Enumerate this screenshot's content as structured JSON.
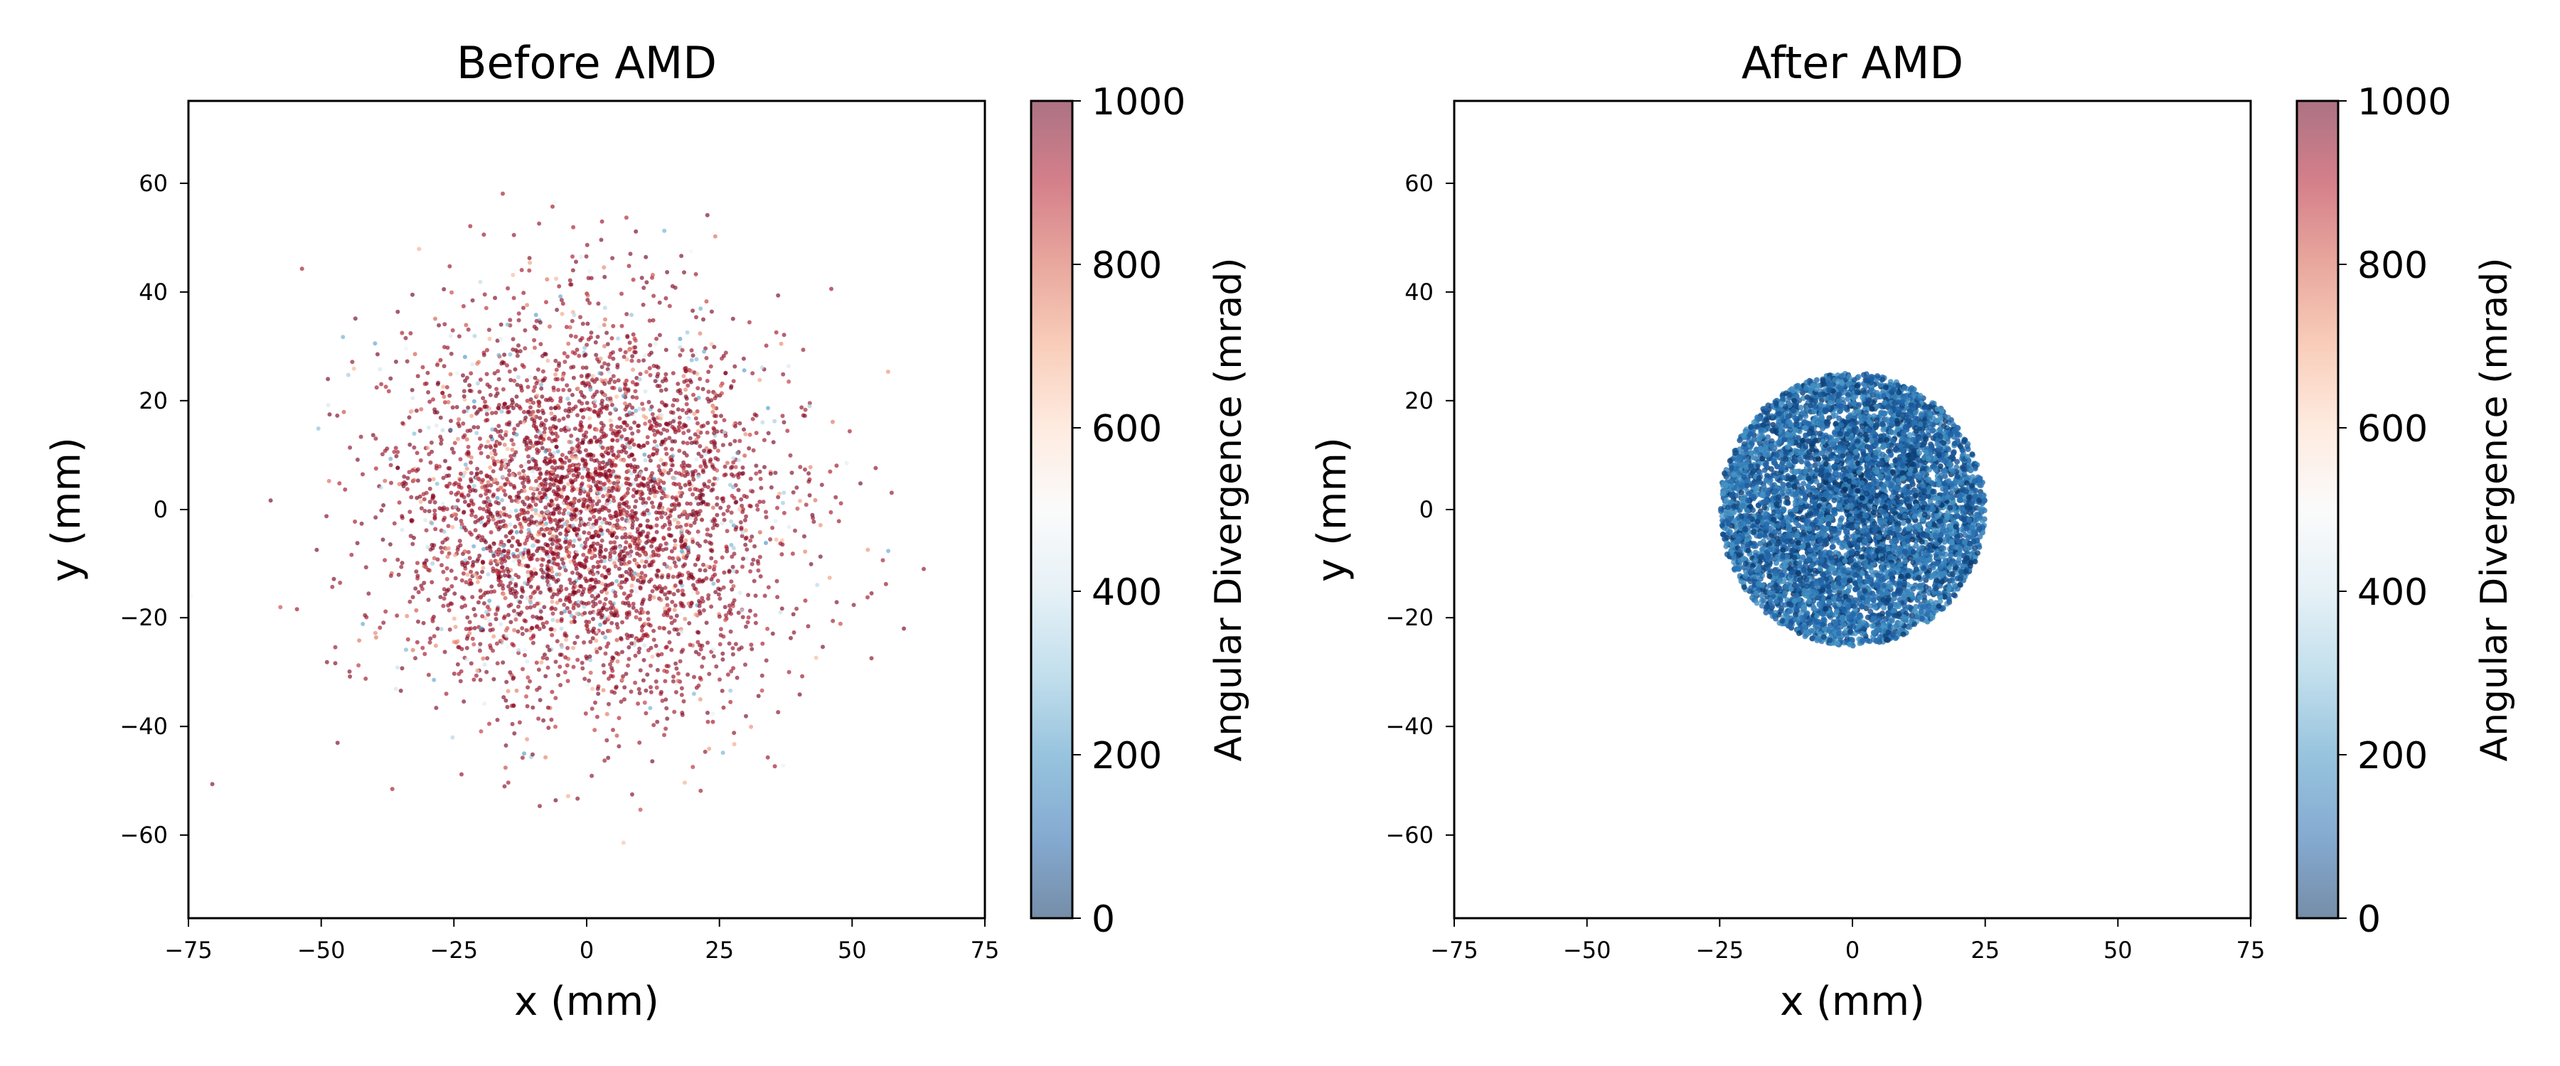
{
  "chart_data": [
    {
      "type": "scatter",
      "title": "Before AMD",
      "xlabel": "x (mm)",
      "ylabel": "y (mm)",
      "xlim": [
        -75,
        75
      ],
      "ylim": [
        -75,
        75
      ],
      "xticks": [
        -75,
        -50,
        -25,
        0,
        25,
        50,
        75
      ],
      "yticks": [
        -60,
        -40,
        -20,
        0,
        20,
        40,
        60
      ],
      "xtick_labels": [
        "−75",
        "−50",
        "−25",
        "0",
        "25",
        "50",
        "75"
      ],
      "ytick_labels": [
        "−60",
        "−40",
        "−20",
        "0",
        "20",
        "40",
        "60"
      ],
      "grid": false,
      "color_by": "angular divergence (mrad), RdBu_r colormap",
      "distribution": {
        "shape": "gaussian",
        "center": [
          0,
          0
        ],
        "sigma_mm": 18,
        "extent_mm": 75,
        "point_count_approx": 4200
      },
      "divergence_range_mrad": [
        200,
        1000
      ],
      "divergence_typical_mrad": 950,
      "colorbar": {
        "label": "Angular Divergence (mrad)",
        "ticks": [
          0,
          200,
          400,
          600,
          800,
          1000
        ],
        "tick_labels": [
          "0",
          "200",
          "400",
          "600",
          "800",
          "1000"
        ],
        "vmin": 0,
        "vmax": 1000,
        "colormap": "RdBu_r",
        "colormap_stops": [
          "#053061",
          "#2166ac",
          "#4393c3",
          "#92c5de",
          "#d1e5f0",
          "#f7f7f7",
          "#fddbc7",
          "#f4a582",
          "#d6604d",
          "#b2182b",
          "#67001f"
        ]
      }
    },
    {
      "type": "scatter",
      "title": "After AMD",
      "xlabel": "x (mm)",
      "ylabel": "y (mm)",
      "xlim": [
        -75,
        75
      ],
      "ylim": [
        -75,
        75
      ],
      "xticks": [
        -75,
        -50,
        -25,
        0,
        25,
        50,
        75
      ],
      "yticks": [
        -60,
        -40,
        -20,
        0,
        20,
        40,
        60
      ],
      "xtick_labels": [
        "−75",
        "−50",
        "−25",
        "0",
        "25",
        "50",
        "75"
      ],
      "ytick_labels": [
        "−60",
        "−40",
        "−20",
        "0",
        "20",
        "40",
        "60"
      ],
      "grid": false,
      "color_by": "angular divergence (mrad), RdBu_r colormap",
      "distribution": {
        "shape": "uniform disk",
        "center": [
          0,
          0
        ],
        "radius_mm": 25,
        "point_count_approx": 6000
      },
      "divergence_range_mrad": [
        0,
        220
      ],
      "divergence_typical_mrad": 90,
      "colorbar": {
        "label": "Angular Divergence (mrad)",
        "ticks": [
          0,
          200,
          400,
          600,
          800,
          1000
        ],
        "tick_labels": [
          "0",
          "200",
          "400",
          "600",
          "800",
          "1000"
        ],
        "vmin": 0,
        "vmax": 1000,
        "colormap": "RdBu_r",
        "colormap_stops": [
          "#053061",
          "#2166ac",
          "#4393c3",
          "#92c5de",
          "#d1e5f0",
          "#f7f7f7",
          "#fddbc7",
          "#f4a582",
          "#d6604d",
          "#b2182b",
          "#67001f"
        ]
      }
    }
  ]
}
